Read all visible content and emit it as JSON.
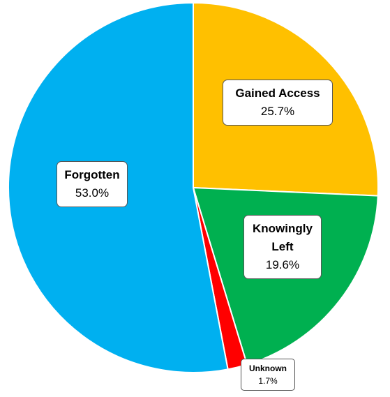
{
  "chart_data": {
    "type": "pie",
    "categories": [
      "Gained Access",
      "Knowingly Left",
      "Unknown",
      "Forgotten"
    ],
    "values": [
      25.7,
      19.6,
      1.7,
      53.0
    ],
    "value_labels": [
      "25.7%",
      "19.6%",
      "1.7%",
      "53.0%"
    ],
    "colors": [
      "#ffc000",
      "#00b050",
      "#ff0000",
      "#00b0f0"
    ]
  }
}
